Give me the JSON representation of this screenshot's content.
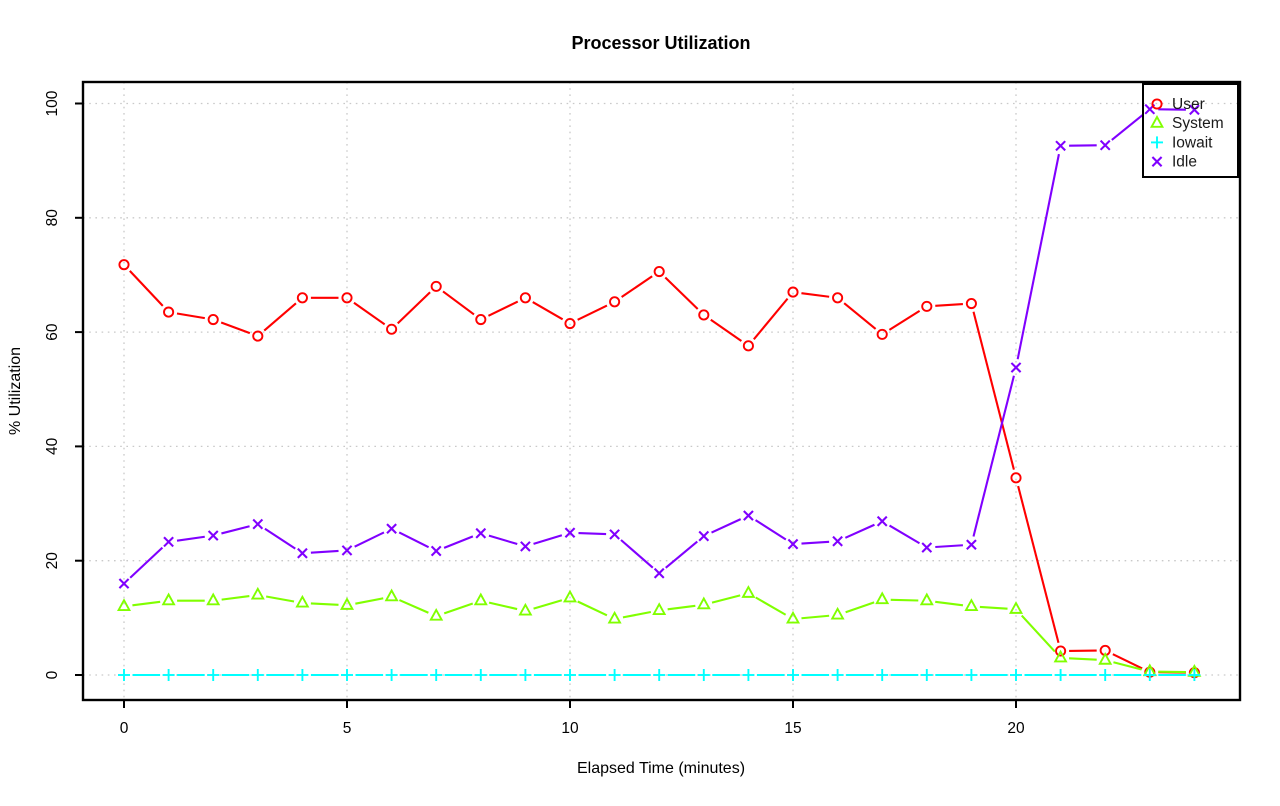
{
  "chart_data": {
    "type": "line",
    "title": "Processor Utilization",
    "xlabel": "Elapsed Time (minutes)",
    "ylabel": "% Utilization",
    "x_ticks": [
      0,
      5,
      10,
      15,
      20
    ],
    "y_ticks": [
      0,
      20,
      40,
      60,
      80,
      100
    ],
    "xlim": [
      -1,
      25
    ],
    "ylim": [
      -4.5,
      104
    ],
    "grid": true,
    "grid_style": "dotted-lightgray",
    "legend_position": "top-right",
    "point_style": "markers-with-gapped-line-segments",
    "x": [
      0,
      1,
      2,
      3,
      4,
      5,
      6,
      7,
      8,
      9,
      10,
      11,
      12,
      13,
      14,
      15,
      16,
      17,
      18,
      19,
      20,
      21,
      22,
      23,
      24
    ],
    "series": [
      {
        "name": "User",
        "color": "#FF0000",
        "marker": "circle",
        "values": [
          71.8,
          63.5,
          62.2,
          59.3,
          66.0,
          66.0,
          60.5,
          68.0,
          62.2,
          66.0,
          61.5,
          65.3,
          70.6,
          63.0,
          57.6,
          67.0,
          66.0,
          59.6,
          64.5,
          65.0,
          34.5,
          4.2,
          4.3,
          0.5,
          0.4
        ]
      },
      {
        "name": "System",
        "color": "#80FF00",
        "marker": "triangle",
        "values": [
          12.0,
          13.0,
          13.0,
          14.0,
          12.6,
          12.2,
          13.7,
          10.3,
          13.0,
          11.2,
          13.5,
          9.8,
          11.3,
          12.3,
          14.3,
          9.8,
          10.5,
          13.2,
          13.0,
          12.0,
          11.5,
          3.0,
          2.6,
          0.6,
          0.5
        ]
      },
      {
        "name": "Iowait",
        "color": "#00FFFF",
        "marker": "plus",
        "values": [
          0,
          0,
          0,
          0,
          0,
          0,
          0,
          0,
          0,
          0,
          0,
          0,
          0,
          0,
          0,
          0,
          0,
          0,
          0,
          0,
          0,
          0,
          0,
          0,
          0
        ]
      },
      {
        "name": "Idle",
        "color": "#8000FF",
        "marker": "x",
        "values": [
          16.0,
          23.3,
          24.4,
          26.4,
          21.3,
          21.8,
          25.6,
          21.7,
          24.8,
          22.5,
          24.9,
          24.6,
          17.8,
          24.3,
          27.9,
          22.9,
          23.4,
          26.9,
          22.3,
          22.8,
          53.8,
          92.6,
          92.7,
          99.0,
          98.9
        ]
      }
    ]
  }
}
